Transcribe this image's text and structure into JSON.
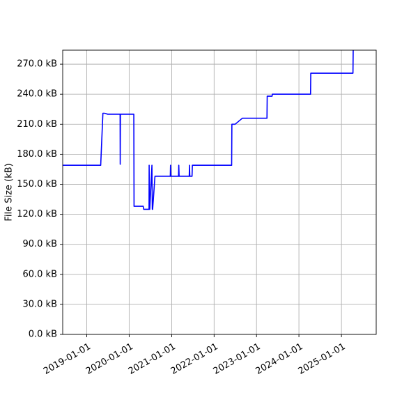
{
  "chart_data": {
    "type": "line",
    "title": "",
    "xlabel": "",
    "ylabel": "File Size (kB)",
    "grid": true,
    "legend": "none",
    "xlim": [
      "2018-06-08",
      "2025-10-27"
    ],
    "ylim": [
      0,
      284
    ],
    "y_ticks": [
      0,
      30,
      60,
      90,
      120,
      150,
      180,
      210,
      240,
      270
    ],
    "y_tick_labels": [
      "0.0 kB",
      "30.0 kB",
      "60.0 kB",
      "90.0 kB",
      "120.0 kB",
      "150.0 kB",
      "180.0 kB",
      "210.0 kB",
      "240.0 kB",
      "270.0 kB"
    ],
    "x_ticks": [
      "2019-01-01",
      "2020-01-01",
      "2021-01-01",
      "2022-01-01",
      "2023-01-01",
      "2024-01-01",
      "2025-01-01"
    ],
    "series": [
      {
        "color": "#0000ff",
        "x": [
          "2018-06-08",
          "2019-05-01",
          "2019-05-20",
          "2019-06-01",
          "2019-07-01",
          "2019-10-15",
          "2019-10-16",
          "2019-10-18",
          "2019-10-20",
          "2019-11-01",
          "2020-02-10",
          "2020-02-12",
          "2020-05-01",
          "2020-05-05",
          "2020-06-20",
          "2020-06-21",
          "2020-06-24",
          "2020-06-26",
          "2020-07-15",
          "2020-07-18",
          "2020-07-21",
          "2020-08-10",
          "2020-08-12",
          "2020-12-20",
          "2020-12-22",
          "2020-12-25",
          "2021-03-01",
          "2021-03-03",
          "2021-03-06",
          "2021-06-01",
          "2021-06-03",
          "2021-06-06",
          "2021-06-25",
          "2021-06-28",
          "2022-06-01",
          "2022-06-03",
          "2022-07-01",
          "2022-09-01",
          "2023-04-01",
          "2023-04-03",
          "2023-05-15",
          "2023-05-17",
          "2024-04-10",
          "2024-04-12",
          "2025-04-10",
          "2025-04-12"
        ],
        "y": [
          169,
          169,
          221,
          221,
          220,
          220,
          170,
          220,
          220,
          220,
          220,
          128,
          128,
          125,
          125,
          169,
          125,
          125,
          169,
          125,
          125,
          158,
          158,
          158,
          169,
          158,
          158,
          169,
          158,
          158,
          169,
          158,
          158,
          169,
          169,
          210,
          210,
          216,
          216,
          238,
          238,
          240,
          240,
          261,
          261,
          284
        ]
      }
    ]
  }
}
